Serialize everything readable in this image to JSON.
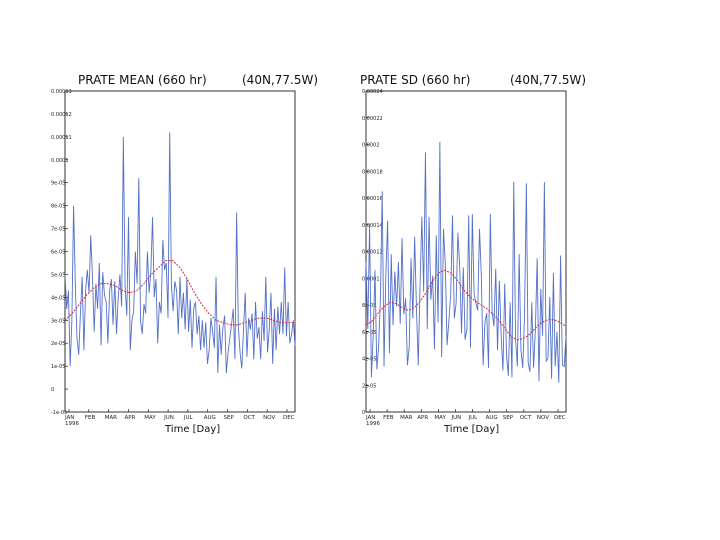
{
  "chart_data": [
    {
      "type": "line",
      "title": "PRATE MEAN (660 hr)",
      "location": "(40N,77.5W)",
      "xlabel": "Time [Day]",
      "ylabel": "",
      "x_ticks": [
        "JAN\n1996",
        "FEB",
        "MAR",
        "APR",
        "MAY",
        "JUN",
        "JUL",
        "AUG",
        "SEP",
        "OCT",
        "NOV",
        "DEC"
      ],
      "y_tick_labels": [
        "0.00013",
        "0.00012",
        "0.00011",
        "0.0001",
        "9e-05",
        "8e-05",
        "7e-05",
        "6e-05",
        "5e-05",
        "4e-05",
        "3e-05",
        "2e-05",
        "1e-05",
        "0",
        "-1e-05"
      ],
      "ylim": [
        -1e-05,
        0.00013
      ],
      "series": [
        {
          "values": [
            5e-05,
            3.5e-05,
            4.3e-05,
            1e-05,
            3e-05,
            8e-05,
            4.6e-05,
            2.2e-05,
            1.5e-05,
            3.3e-05,
            4.9e-05,
            1.7e-05,
            4.3e-05,
            5.2e-05,
            4.2e-05,
            6.7e-05,
            4.9e-05,
            2.5e-05,
            4.6e-05,
            3.5e-05,
            5.5e-05,
            1.9e-05,
            5.1e-05,
            4.1e-05,
            3.8e-05,
            2e-05,
            4.3e-05,
            4.8e-05,
            2.8e-05,
            4.7e-05,
            2.4e-05,
            4e-05,
            5e-05,
            3.6e-05,
            0.00011,
            4.5e-05,
            3.2e-05,
            7.5e-05,
            1.7e-05,
            3e-05,
            3.4e-05,
            6e-05,
            4.6e-05,
            9.2e-05,
            3e-05,
            2.4e-05,
            3.7e-05,
            3.3e-05,
            6e-05,
            4.2e-05,
            5.1e-05,
            7.5e-05,
            4e-05,
            4.8e-05,
            2e-05,
            3.8e-05,
            3.3e-05,
            6.5e-05,
            5.2e-05,
            5.5e-05,
            3.1e-05,
            0.000112,
            4.5e-05,
            3.4e-05,
            4.7e-05,
            4.3e-05,
            2.4e-05,
            4.9e-05,
            3.1e-05,
            4.2e-05,
            2.6e-05,
            4.8e-05,
            2.5e-05,
            3.9e-05,
            1.8e-05,
            3.5e-05,
            3.8e-05,
            2.4e-05,
            3.2e-05,
            1.7e-05,
            3e-05,
            1.8e-05,
            2.9e-05,
            1.1e-05,
            1.7e-05,
            3.1e-05,
            2.5e-05,
            1.8e-05,
            4.9e-05,
            7e-06,
            2.8e-05,
            1.5e-05,
            2.7e-05,
            3.2e-05,
            7e-06,
            1.6e-05,
            2.2e-05,
            2.8e-05,
            3.5e-05,
            1.3e-05,
            7.7e-05,
            2.7e-05,
            1.6e-05,
            9e-06,
            2.6e-05,
            4.2e-05,
            1.4e-05,
            3.1e-05,
            2.6e-05,
            3.3e-05,
            1.3e-05,
            3.8e-05,
            2.2e-05,
            2.7e-05,
            1.3e-05,
            3.4e-05,
            2.1e-05,
            4.9e-05,
            1.6e-05,
            2.6e-05,
            4.2e-05,
            1.1e-05,
            3.5e-05,
            1.7e-05,
            3.6e-05,
            2.4e-05,
            3.8e-05,
            2.4e-05,
            5.3e-05,
            2.3e-05,
            3.8e-05,
            2e-05,
            2.4e-05,
            3e-05,
            1.9e-05
          ]
        },
        {
          "values": [
            3e-05,
            3.3e-05,
            3.7e-05,
            4.1e-05,
            4.4e-05,
            4.6e-05,
            4.6e-05,
            4.5e-05,
            4.3e-05,
            4.2e-05,
            4.3e-05,
            4.6e-05,
            5e-05,
            5.3e-05,
            5.6e-05,
            5.6e-05,
            5.3e-05,
            4.8e-05,
            4.2e-05,
            3.7e-05,
            3.3e-05,
            3e-05,
            2.9e-05,
            2.8e-05,
            2.8e-05,
            2.9e-05,
            3e-05,
            3.1e-05,
            3.1e-05,
            3e-05,
            2.9e-05,
            2.9e-05,
            2.9e-05
          ]
        }
      ]
    },
    {
      "type": "line",
      "title": "PRATE SD (660 hr)",
      "location": "(40N,77.5W)",
      "xlabel": "Time [Day]",
      "ylabel": "",
      "x_ticks": [
        "JAN\n1996",
        "FEB",
        "MAR",
        "APR",
        "MAY",
        "JUN",
        "JUL",
        "AUG",
        "SEP",
        "OCT",
        "NOV",
        "DEC"
      ],
      "y_tick_labels": [
        "0.00024",
        "0.00022",
        "0.0002",
        "0.00018",
        "0.00016",
        "0.00014",
        "0.00012",
        "0.0001",
        "8e-05",
        "6e-05",
        "4e-05",
        "2e-05",
        "0"
      ],
      "ylim": [
        0,
        0.00024
      ],
      "series": [
        {
          "values": [
            0.000112,
            6.2e-05,
            0.00014,
            2.6e-05,
            5.8e-05,
            0.000106,
            3.2e-05,
            4.9e-05,
            8.5e-05,
            0.000165,
            3.4e-05,
            0.000102,
            0.000143,
            4.4e-05,
            0.000118,
            6.5e-05,
            0.000105,
            7.9e-05,
            0.000112,
            6.6e-05,
            0.00013,
            7.3e-05,
            8.5e-05,
            3.5e-05,
            4.9e-05,
            0.000115,
            7e-05,
            0.000131,
            7.8e-05,
            3.5e-05,
            9.5e-05,
            0.000146,
            9e-05,
            0.000194,
            6.2e-05,
            0.000146,
            8.4e-05,
            0.000102,
            4.7e-05,
            0.000132,
            6.7e-05,
            0.000202,
            4.1e-05,
            0.000137,
            0.000111,
            5e-05,
            6.8e-05,
            8.8e-05,
            0.000147,
            7e-05,
            8.1e-05,
            0.000134,
            0.000109,
            5.9e-05,
            0.000108,
            5.4e-05,
            6.2e-05,
            0.000147,
            4.8e-05,
            0.000148,
            8.9e-05,
            8.1e-05,
            7.6e-05,
            0.000137,
            0.000102,
            3.5e-05,
            6.7e-05,
            7.4e-05,
            3.3e-05,
            0.000148,
            7.5e-05,
            6.4e-05,
            0.000107,
            4.6e-05,
            9.8e-05,
            5.8e-05,
            3.1e-05,
            9.6e-05,
            4.2e-05,
            2.7e-05,
            8.2e-05,
            2.6e-05,
            0.000172,
            5.5e-05,
            3.4e-05,
            0.000118,
            4.6e-05,
            3.3e-05,
            7.3e-05,
            0.000171,
            3.7e-05,
            3e-05,
            8.2e-05,
            3.3e-05,
            6.1e-05,
            0.000115,
            2.3e-05,
            9.2e-05,
            5.7e-05,
            0.000172,
            3.8e-05,
            4e-05,
            8.6e-05,
            2.5e-05,
            0.000104,
            3.4e-05,
            6e-05,
            2.2e-05,
            0.000117,
            3.5e-05,
            3.4e-05,
            5.7e-05
          ]
        },
        {
          "values": [
            6.5e-05,
            6.8e-05,
            7.4e-05,
            7.9e-05,
            8.2e-05,
            8.1e-05,
            7.8e-05,
            7.6e-05,
            7.8e-05,
            8.3e-05,
            9e-05,
            9.8e-05,
            0.000104,
            0.000106,
            0.000104,
            9.9e-05,
            9.2e-05,
            8.7e-05,
            8.3e-05,
            8e-05,
            7.7e-05,
            7.3e-05,
            6.8e-05,
            6.2e-05,
            5.6e-05,
            5.4e-05,
            5.5e-05,
            5.8e-05,
            6.3e-05,
            6.7e-05,
            6.9e-05,
            6.9e-05,
            6.7e-05,
            6.4e-05
          ]
        }
      ]
    }
  ]
}
